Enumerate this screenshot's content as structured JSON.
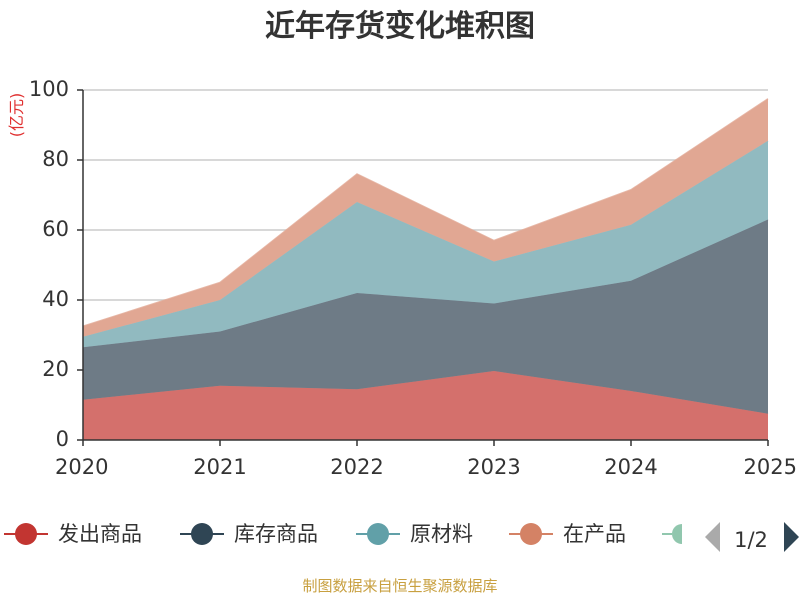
{
  "chart_data": {
    "type": "area",
    "stacked": true,
    "title": "近年存货变化堆积图",
    "y_unit": "(亿元)",
    "x": [
      "2020",
      "2021",
      "2022",
      "2023",
      "2024",
      "2025"
    ],
    "ylim": [
      0,
      100
    ],
    "yticks": [
      0,
      20,
      40,
      60,
      80,
      100
    ],
    "grid": true,
    "legend_placement": "bottom",
    "series": [
      {
        "name": "发出商品",
        "color": "#d4706c",
        "values": [
          11.5,
          15.5,
          14.5,
          19.7,
          14.0,
          7.5
        ]
      },
      {
        "name": "库存商品",
        "color": "#6e7b86",
        "values": [
          15.0,
          15.5,
          27.5,
          19.3,
          31.5,
          55.5
        ]
      },
      {
        "name": "原材料",
        "color": "#91bac0",
        "values": [
          3.0,
          9.0,
          26.0,
          12.0,
          16.0,
          22.5
        ]
      },
      {
        "name": "在产品",
        "color": "#e1a793",
        "values": [
          3.0,
          5.0,
          8.0,
          6.0,
          10.0,
          12.0
        ]
      }
    ],
    "legend_colors": [
      "#c23531",
      "#2f4554",
      "#61a0a8",
      "#d48265",
      "#91c7ae"
    ],
    "pager": "1/2",
    "source": "制图数据来自恒生聚源数据库"
  }
}
